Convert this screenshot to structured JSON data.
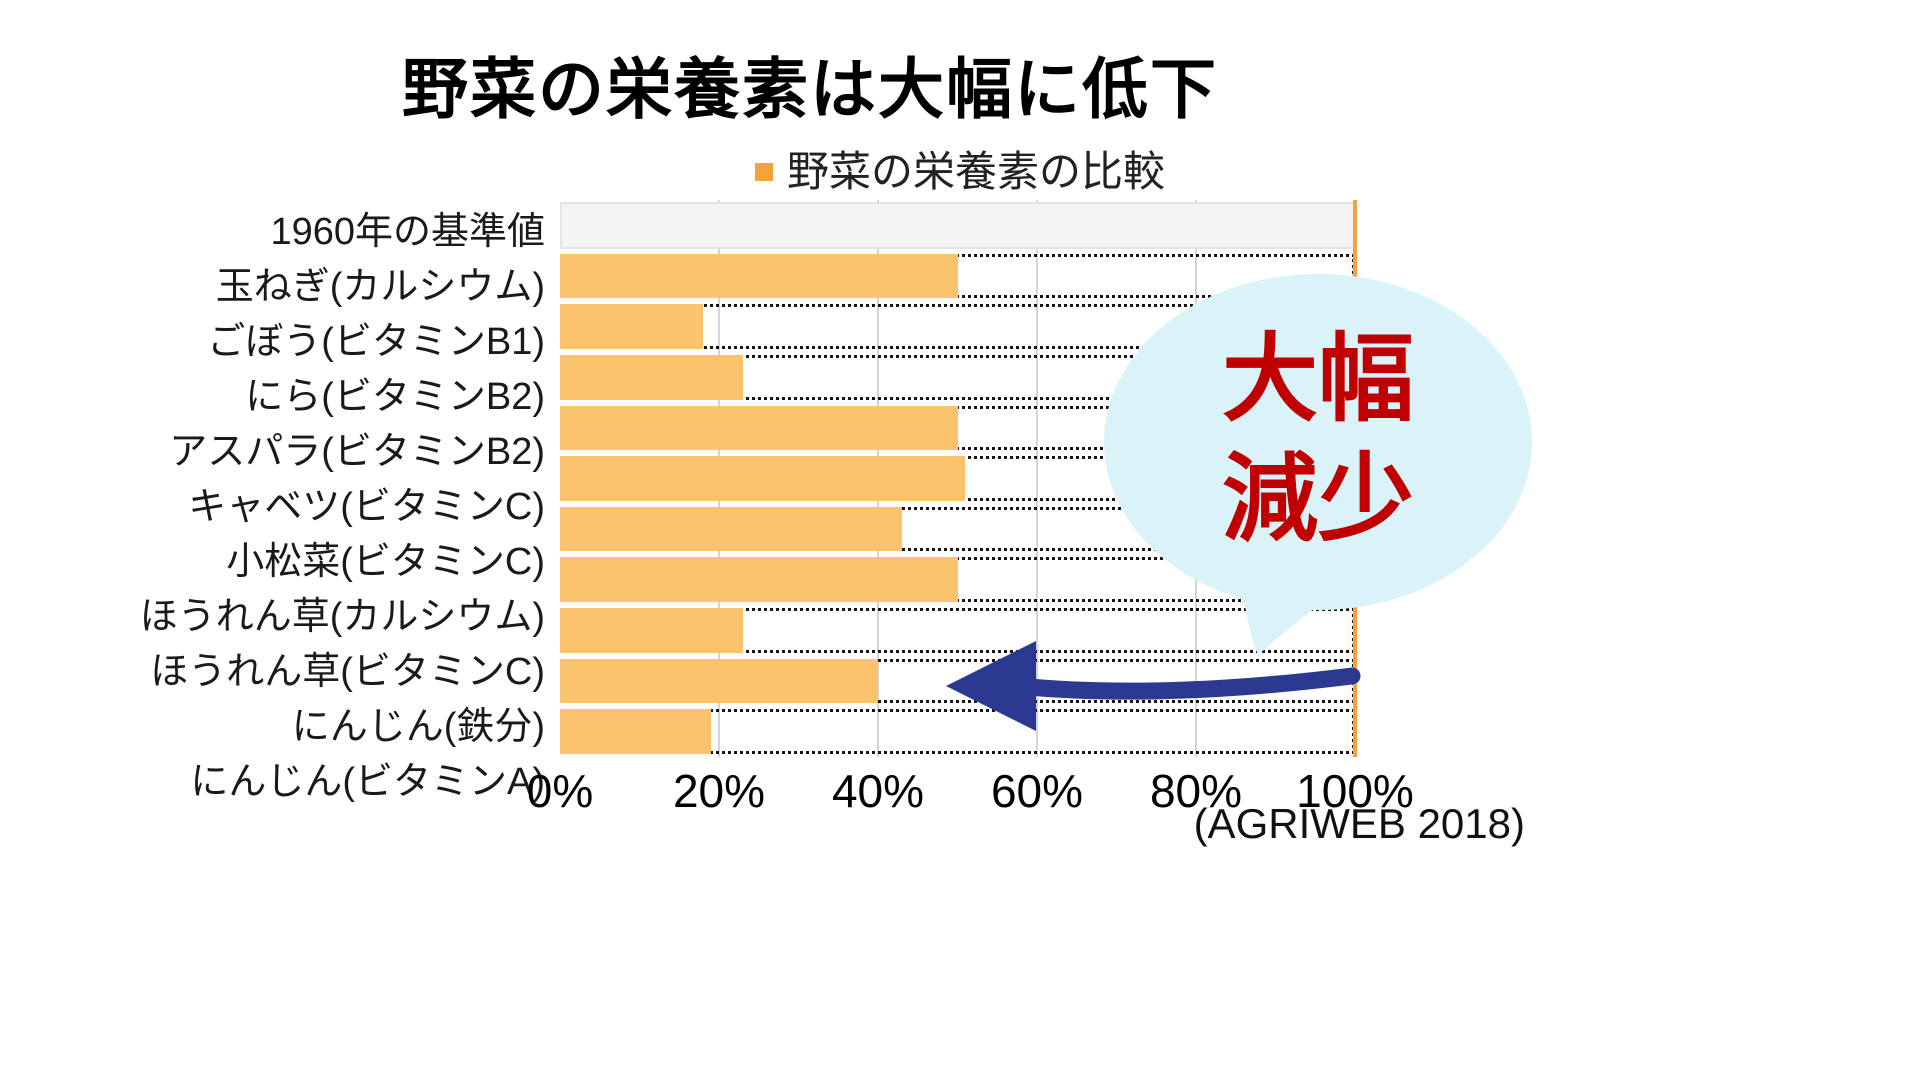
{
  "title": "野菜の栄養素は大幅に低下",
  "legend": {
    "label": "野菜の栄養素の比較",
    "marker_color": "#F2A33C"
  },
  "chart_data": {
    "type": "bar",
    "orientation": "horizontal",
    "title": "野菜の栄養素の比較",
    "categories": [
      "1960年の基準値",
      "玉ねぎ(カルシウム)",
      "ごぼう(ビタミンB1)",
      "にら(ビタミンB2)",
      "アスパラ(ビタミンB2)",
      "キャベツ(ビタミンC)",
      "小松菜(ビタミンC)",
      "ほうれん草(カルシウム)",
      "ほうれん草(ビタミンC)",
      "にんじん(鉄分)",
      "にんじん(ビタミンA)"
    ],
    "values": [
      100,
      50,
      18,
      23,
      50,
      51,
      43,
      50,
      23,
      40,
      19
    ],
    "xlim": [
      0,
      100
    ],
    "x_tick_labels": [
      "0%",
      "20%",
      "40%",
      "60%",
      "80%",
      "100%"
    ],
    "baseline_value": 100,
    "bar_color": "#FBC36B",
    "baseline_row_color": "#F4F4F4",
    "reference_line_color": "#F2A33C",
    "grid": true,
    "legend_position": "top"
  },
  "annotation_bubble": {
    "line1": "大幅",
    "line2": "減少",
    "text_color": "#C00000",
    "bubble_color": "#D9F3F8"
  },
  "arrow": {
    "color": "#2B3990"
  },
  "source": "(AGRIWEB 2018)"
}
